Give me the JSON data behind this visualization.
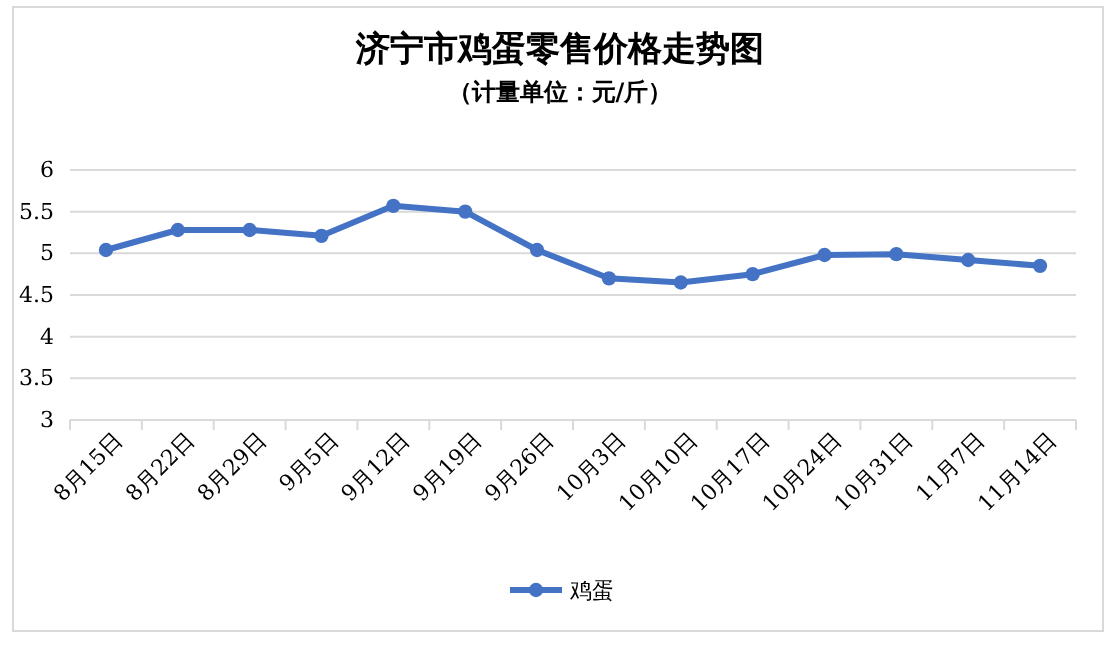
{
  "chart_data": {
    "type": "line",
    "title": "济宁市鸡蛋零售价格走势图",
    "subtitle": "（计量单位：元/斤）",
    "categories": [
      "8月15日",
      "8月22日",
      "8月29日",
      "9月5日",
      "9月12日",
      "9月19日",
      "9月26日",
      "10月3日",
      "10月10日",
      "10月17日",
      "10月24日",
      "10月31日",
      "11月7日",
      "11月14日"
    ],
    "series": [
      {
        "name": "鸡蛋",
        "color": "#4472c4",
        "values": [
          5.04,
          5.28,
          5.28,
          5.21,
          5.57,
          5.5,
          5.04,
          4.7,
          4.65,
          4.75,
          4.98,
          4.99,
          4.92,
          4.85
        ]
      }
    ],
    "ylim": [
      3,
      6
    ],
    "yticks": [
      3,
      3.5,
      4,
      4.5,
      5,
      5.5,
      6
    ],
    "grid": "y",
    "legend": "bottom",
    "marker": "circle",
    "line_style": "solid"
  }
}
